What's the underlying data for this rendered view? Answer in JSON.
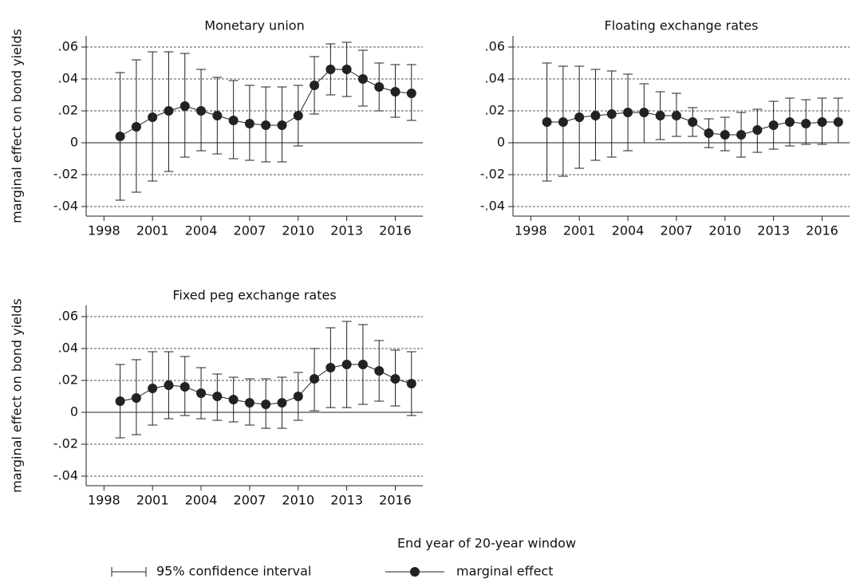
{
  "chart_data": [
    {
      "type": "errorbar-line",
      "title": "Monetary union",
      "ylabel": "marginal effect on bond yields",
      "x": [
        1999,
        2000,
        2001,
        2002,
        2003,
        2004,
        2005,
        2006,
        2007,
        2008,
        2009,
        2010,
        2011,
        2012,
        2013,
        2014,
        2015,
        2016,
        2017
      ],
      "values": [
        0.004,
        0.01,
        0.016,
        0.02,
        0.023,
        0.02,
        0.017,
        0.014,
        0.012,
        0.011,
        0.011,
        0.017,
        0.036,
        0.046,
        0.046,
        0.04,
        0.035,
        0.032,
        0.031
      ],
      "ci_low": [
        -0.036,
        -0.031,
        -0.024,
        -0.018,
        -0.009,
        -0.005,
        -0.007,
        -0.01,
        -0.011,
        -0.012,
        -0.012,
        -0.002,
        0.018,
        0.03,
        0.029,
        0.023,
        0.02,
        0.016,
        0.014
      ],
      "ci_high": [
        0.044,
        0.052,
        0.057,
        0.057,
        0.056,
        0.046,
        0.041,
        0.039,
        0.036,
        0.035,
        0.035,
        0.036,
        0.054,
        0.062,
        0.063,
        0.058,
        0.05,
        0.049,
        0.049
      ],
      "xlim": [
        1996.9,
        2017.7
      ],
      "xticks": [
        1998,
        2001,
        2004,
        2007,
        2010,
        2013,
        2016
      ],
      "ylim": [
        -0.046,
        0.067
      ],
      "yticks": [
        {
          "value": 0.06,
          "label": ".06"
        },
        {
          "value": 0.04,
          "label": ".04"
        },
        {
          "value": 0.02,
          "label": ".02"
        },
        0,
        {
          "value": -0.02,
          "label": "-.02"
        },
        {
          "value": -0.04,
          "label": "-.04"
        }
      ],
      "grid": true,
      "color": "#222222"
    },
    {
      "type": "errorbar-line",
      "title": "Floating exchange rates",
      "x": [
        1999,
        2000,
        2001,
        2002,
        2003,
        2004,
        2005,
        2006,
        2007,
        2008,
        2009,
        2010,
        2011,
        2012,
        2013,
        2014,
        2015,
        2016,
        2017
      ],
      "values": [
        0.013,
        0.013,
        0.016,
        0.017,
        0.018,
        0.019,
        0.019,
        0.017,
        0.017,
        0.013,
        0.006,
        0.005,
        0.005,
        0.008,
        0.011,
        0.013,
        0.012,
        0.013,
        0.013
      ],
      "ci_low": [
        -0.024,
        -0.021,
        -0.016,
        -0.011,
        -0.009,
        -0.005,
        0.0,
        0.002,
        0.004,
        0.004,
        -0.003,
        -0.005,
        -0.009,
        -0.006,
        -0.004,
        -0.002,
        -0.001,
        -0.001,
        0.0
      ],
      "ci_high": [
        0.05,
        0.048,
        0.048,
        0.046,
        0.045,
        0.043,
        0.037,
        0.032,
        0.031,
        0.022,
        0.015,
        0.016,
        0.019,
        0.021,
        0.026,
        0.028,
        0.027,
        0.028,
        0.028
      ],
      "xlim": [
        1996.9,
        2017.7
      ],
      "xticks": [
        1998,
        2001,
        2004,
        2007,
        2010,
        2013,
        2016
      ],
      "ylim": [
        -0.046,
        0.067
      ],
      "yticks": [
        {
          "value": 0.06,
          "label": ".06"
        },
        {
          "value": 0.04,
          "label": ".04"
        },
        {
          "value": 0.02,
          "label": ".02"
        },
        0,
        {
          "value": -0.02,
          "label": "-.02"
        },
        {
          "value": -0.04,
          "label": "-.04"
        }
      ],
      "grid": true,
      "color": "#222222"
    },
    {
      "type": "errorbar-line",
      "title": "Fixed peg exchange rates",
      "ylabel": "marginal effect on bond yields",
      "x": [
        1999,
        2000,
        2001,
        2002,
        2003,
        2004,
        2005,
        2006,
        2007,
        2008,
        2009,
        2010,
        2011,
        2012,
        2013,
        2014,
        2015,
        2016,
        2017
      ],
      "values": [
        0.007,
        0.009,
        0.015,
        0.017,
        0.016,
        0.012,
        0.01,
        0.008,
        0.006,
        0.005,
        0.006,
        0.01,
        0.021,
        0.028,
        0.03,
        0.03,
        0.026,
        0.021,
        0.018
      ],
      "ci_low": [
        -0.016,
        -0.014,
        -0.008,
        -0.004,
        -0.002,
        -0.004,
        -0.005,
        -0.006,
        -0.008,
        -0.01,
        -0.01,
        -0.005,
        0.001,
        0.003,
        0.003,
        0.005,
        0.007,
        0.004,
        -0.002
      ],
      "ci_high": [
        0.03,
        0.033,
        0.038,
        0.038,
        0.035,
        0.028,
        0.024,
        0.022,
        0.021,
        0.021,
        0.022,
        0.025,
        0.04,
        0.053,
        0.057,
        0.055,
        0.045,
        0.039,
        0.038
      ],
      "xlim": [
        1996.9,
        2017.7
      ],
      "xticks": [
        1998,
        2001,
        2004,
        2007,
        2010,
        2013,
        2016
      ],
      "ylim": [
        -0.046,
        0.067
      ],
      "yticks": [
        {
          "value": 0.06,
          "label": ".06"
        },
        {
          "value": 0.04,
          "label": ".04"
        },
        {
          "value": 0.02,
          "label": ".02"
        },
        0,
        {
          "value": -0.02,
          "label": "-.02"
        },
        {
          "value": -0.04,
          "label": "-.04"
        }
      ],
      "grid": true,
      "color": "#222222"
    }
  ],
  "xlabel": "End year of 20-year window",
  "legend": {
    "ci": "95% confidence interval",
    "estimate": "marginal effect"
  }
}
